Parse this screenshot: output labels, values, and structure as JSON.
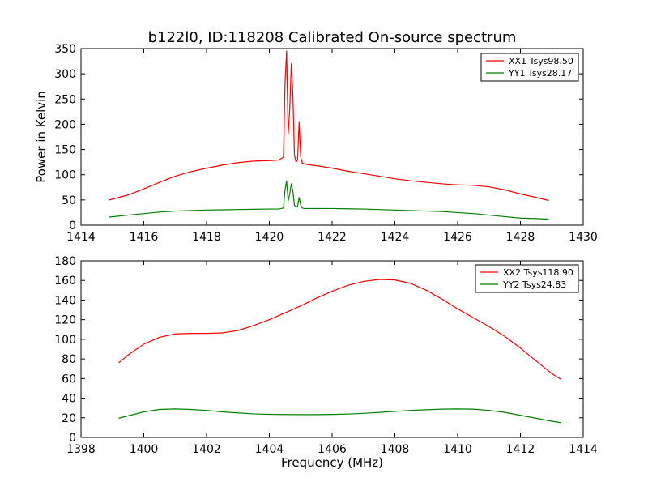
{
  "figure": {
    "title": "b122l0, ID:118208 Calibrated On-source spectrum"
  },
  "chart_data": [
    {
      "type": "line",
      "title": "b122l0, ID:118208 Calibrated On-source spectrum",
      "xlabel": "",
      "ylabel": "Power in Kelvin",
      "xlim": [
        1414,
        1430
      ],
      "ylim": [
        0,
        350
      ],
      "xticks": [
        "1414",
        "1416",
        "1418",
        "1420",
        "1422",
        "1424",
        "1426",
        "1428",
        "1430"
      ],
      "yticks": [
        "0",
        "50",
        "100",
        "150",
        "200",
        "250",
        "300",
        "350"
      ],
      "grid": false,
      "legend_position": "top-right",
      "series": [
        {
          "name": "XX1 Tsys98.50",
          "color": "#ff0000",
          "x": [
            1414.9,
            1415.5,
            1416.0,
            1416.5,
            1417.0,
            1417.5,
            1418.0,
            1418.5,
            1419.0,
            1419.5,
            1420.0,
            1420.3,
            1420.45,
            1420.5,
            1420.55,
            1420.6,
            1420.65,
            1420.7,
            1420.75,
            1420.8,
            1420.85,
            1420.9,
            1420.95,
            1421.0,
            1421.05,
            1421.1,
            1421.2,
            1421.5,
            1422.0,
            1422.5,
            1423.0,
            1423.5,
            1424.0,
            1424.5,
            1425.0,
            1425.5,
            1426.0,
            1426.5,
            1427.0,
            1427.5,
            1428.0,
            1428.5,
            1428.9
          ],
          "values": [
            50,
            60,
            72,
            85,
            97,
            106,
            113,
            119,
            124,
            127,
            128,
            129,
            135,
            280,
            345,
            180,
            230,
            320,
            260,
            140,
            125,
            130,
            205,
            135,
            123,
            122,
            120,
            118,
            113,
            107,
            102,
            97,
            92,
            88,
            85,
            82,
            80,
            79,
            76,
            70,
            62,
            55,
            49
          ]
        },
        {
          "name": "YY1 Tsys28.17",
          "color": "#008000",
          "x": [
            1414.9,
            1415.5,
            1416.0,
            1416.5,
            1417.0,
            1417.5,
            1418.0,
            1418.5,
            1419.0,
            1419.5,
            1420.0,
            1420.3,
            1420.45,
            1420.5,
            1420.55,
            1420.6,
            1420.65,
            1420.7,
            1420.75,
            1420.8,
            1420.85,
            1420.9,
            1420.95,
            1421.0,
            1421.05,
            1421.1,
            1421.2,
            1421.5,
            1422.0,
            1422.5,
            1423.0,
            1423.5,
            1424.0,
            1424.5,
            1425.0,
            1425.5,
            1426.0,
            1426.5,
            1427.0,
            1427.5,
            1428.0,
            1428.5,
            1428.9
          ],
          "values": [
            16,
            20,
            23,
            26,
            28,
            29,
            30,
            30.5,
            31,
            31.5,
            32,
            32,
            34,
            70,
            88,
            48,
            62,
            82,
            68,
            40,
            35,
            38,
            55,
            40,
            34,
            33,
            33,
            33,
            33,
            32.5,
            32,
            31,
            30,
            29,
            28,
            27,
            25,
            23,
            20,
            17,
            14,
            13,
            12
          ]
        }
      ]
    },
    {
      "type": "line",
      "title": "",
      "xlabel": "Frequency (MHz)",
      "ylabel": "",
      "xlim": [
        1398,
        1414
      ],
      "ylim": [
        0,
        180
      ],
      "xticks": [
        "1398",
        "1400",
        "1402",
        "1404",
        "1406",
        "1408",
        "1410",
        "1412",
        "1414"
      ],
      "yticks": [
        "0",
        "20",
        "40",
        "60",
        "80",
        "100",
        "120",
        "140",
        "160",
        "180"
      ],
      "grid": false,
      "legend_position": "top-right",
      "series": [
        {
          "name": "XX2 Tsys118.90",
          "color": "#ff0000",
          "x": [
            1399.2,
            1399.5,
            1400.0,
            1400.5,
            1401.0,
            1401.5,
            1402.0,
            1402.5,
            1403.0,
            1403.5,
            1404.0,
            1404.5,
            1405.0,
            1405.5,
            1406.0,
            1406.5,
            1407.0,
            1407.5,
            1408.0,
            1408.5,
            1409.0,
            1409.5,
            1410.0,
            1410.5,
            1411.0,
            1411.5,
            1412.0,
            1412.5,
            1413.0,
            1413.3
          ],
          "values": [
            76,
            84,
            95,
            102,
            105.5,
            106,
            106,
            106.5,
            109,
            114,
            120,
            127,
            134,
            142,
            149,
            155,
            159,
            161,
            160.5,
            157,
            150,
            141,
            131,
            122,
            113,
            103,
            91,
            78,
            65,
            59
          ]
        },
        {
          "name": "YY2 Tsys24.83",
          "color": "#008000",
          "x": [
            1399.2,
            1399.5,
            1400.0,
            1400.5,
            1401.0,
            1401.5,
            1402.0,
            1402.5,
            1403.0,
            1403.5,
            1404.0,
            1404.5,
            1405.0,
            1405.5,
            1406.0,
            1406.5,
            1407.0,
            1407.5,
            1408.0,
            1408.5,
            1409.0,
            1409.5,
            1410.0,
            1410.5,
            1411.0,
            1411.5,
            1412.0,
            1412.5,
            1413.0,
            1413.3
          ],
          "values": [
            19.5,
            22,
            26,
            28.5,
            29,
            28.5,
            27.5,
            26,
            25,
            24,
            23.5,
            23.3,
            23.2,
            23.2,
            23.4,
            23.8,
            24.5,
            25.5,
            26.5,
            27.5,
            28.2,
            28.8,
            29,
            28.8,
            27.5,
            25.5,
            22.5,
            19.5,
            16.5,
            15
          ]
        }
      ]
    }
  ]
}
